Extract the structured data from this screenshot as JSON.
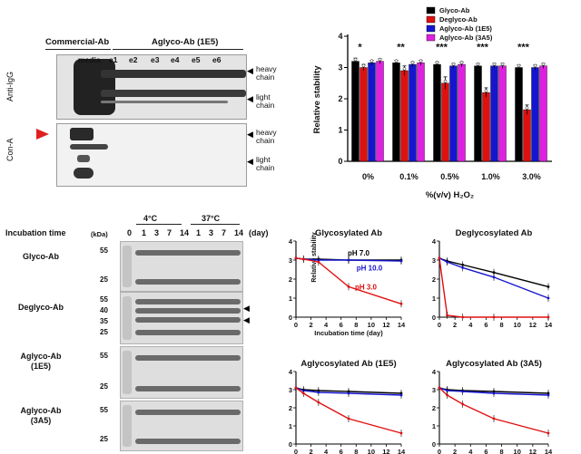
{
  "panel_a": {
    "commercial_label": "Commercial-Ab",
    "aglyco_label": "Aglyco-Ab (1E5)",
    "lanes": [
      "media",
      "e1",
      "e2",
      "e3",
      "e4",
      "e5",
      "e6"
    ],
    "anti_igg_label": "Anti-IgG",
    "cona_label": "Con-A",
    "heavy_chain": "heavy chain",
    "light_chain": "light chain",
    "heavy_chain_2": "heavy chain",
    "light_chain_2": "light chain",
    "arrow_color": "#e02020"
  },
  "panel_b": {
    "incubation_time_label": "Incubation time",
    "temp_4": "4°C",
    "temp_37": "37°C",
    "day_label": "(day)",
    "kda_label": "(kDa)",
    "days": [
      "0",
      "1",
      "3",
      "7",
      "14",
      "1",
      "3",
      "7",
      "14"
    ],
    "rows": [
      {
        "name": "Glyco-Ab",
        "markers": [
          "55",
          "25"
        ]
      },
      {
        "name": "Deglyco-Ab",
        "markers": [
          "55",
          "40",
          "35",
          "25"
        ]
      },
      {
        "name": "Aglyco-Ab (1E5)",
        "markers": [
          "55",
          "25"
        ]
      },
      {
        "name": "Aglyco-Ab (3A5)",
        "markers": [
          "55",
          "25"
        ]
      }
    ]
  },
  "chart_data": [
    {
      "type": "bar",
      "title": "",
      "categories": [
        "0%",
        "0.1%",
        "0.5%",
        "1.0%",
        "3.0%"
      ],
      "xlabel": "%(v/v) H₂O₂",
      "ylabel": "Relative stability",
      "ylim": [
        0,
        4
      ],
      "yticks": [
        "0",
        "1",
        "2",
        "3",
        "4"
      ],
      "legend_position": "top-right",
      "series": [
        {
          "name": "Glyco-Ab",
          "color": "#000000",
          "values": [
            3.2,
            3.15,
            3.1,
            3.05,
            3.0
          ]
        },
        {
          "name": "Deglyco-Ab",
          "color": "#e01010",
          "values": [
            3.0,
            2.9,
            2.5,
            2.2,
            1.65
          ]
        },
        {
          "name": "Aglyco-Ab (1E5)",
          "color": "#1515d0",
          "values": [
            3.15,
            3.1,
            3.05,
            3.05,
            3.0
          ]
        },
        {
          "name": "Aglyco-Ab (3A5)",
          "color": "#e020e0",
          "values": [
            3.2,
            3.15,
            3.1,
            3.05,
            3.05
          ]
        }
      ],
      "errors": [
        [
          0.1,
          0.08,
          0.08,
          0.08,
          0.08
        ],
        [
          0.1,
          0.15,
          0.2,
          0.15,
          0.15
        ],
        [
          0.08,
          0.08,
          0.08,
          0.08,
          0.08
        ],
        [
          0.08,
          0.08,
          0.08,
          0.08,
          0.08
        ]
      ],
      "significance": [
        "*",
        "**",
        "***",
        "***",
        "***"
      ]
    },
    {
      "type": "line",
      "title": "Glycosylated Ab",
      "xlabel": "Incubation time (day)",
      "ylabel": "Relative stability",
      "x": [
        0,
        1,
        3,
        7,
        14
      ],
      "xlim": [
        0,
        14
      ],
      "ylim": [
        0,
        4
      ],
      "xticks": [
        "0",
        "2",
        "4",
        "6",
        "8",
        "10",
        "12",
        "14"
      ],
      "yticks": [
        "0",
        "1",
        "2",
        "3",
        "4"
      ],
      "series": [
        {
          "name": "pH 7.0",
          "color": "#000000",
          "values": [
            3.1,
            3.05,
            3.05,
            3.0,
            3.0
          ]
        },
        {
          "name": "pH 10.0",
          "color": "#1515d0",
          "values": [
            3.1,
            3.05,
            3.0,
            3.0,
            2.95
          ]
        },
        {
          "name": "pH 3.0",
          "color": "#e01010",
          "values": [
            3.1,
            3.05,
            2.9,
            1.6,
            0.7
          ]
        }
      ]
    },
    {
      "type": "line",
      "title": "Deglycosylated Ab",
      "x": [
        0,
        1,
        3,
        7,
        14
      ],
      "xlim": [
        0,
        14
      ],
      "ylim": [
        0,
        4
      ],
      "xticks": [
        "0",
        "2",
        "4",
        "6",
        "8",
        "10",
        "12",
        "14"
      ],
      "yticks": [
        "0",
        "1",
        "2",
        "3",
        "4"
      ],
      "series": [
        {
          "name": "",
          "color": "#000000",
          "values": [
            3.1,
            2.95,
            2.75,
            2.35,
            1.6
          ]
        },
        {
          "name": "",
          "color": "#1515d0",
          "values": [
            3.1,
            2.9,
            2.6,
            2.1,
            1.0
          ]
        },
        {
          "name": "",
          "color": "#e01010",
          "values": [
            3.1,
            0.1,
            0.0,
            0.0,
            0.0
          ]
        }
      ]
    },
    {
      "type": "line",
      "title": "Aglycosylated Ab (1E5)",
      "x": [
        0,
        1,
        3,
        7,
        14
      ],
      "xlim": [
        0,
        14
      ],
      "ylim": [
        0,
        4
      ],
      "xticks": [
        "0",
        "2",
        "4",
        "6",
        "8",
        "10",
        "12",
        "14"
      ],
      "yticks": [
        "0",
        "1",
        "2",
        "3",
        "4"
      ],
      "series": [
        {
          "name": "",
          "color": "#000000",
          "values": [
            3.1,
            3.0,
            2.95,
            2.9,
            2.8
          ]
        },
        {
          "name": "",
          "color": "#1515d0",
          "values": [
            3.1,
            2.95,
            2.85,
            2.8,
            2.7
          ]
        },
        {
          "name": "",
          "color": "#e01010",
          "values": [
            3.1,
            2.8,
            2.3,
            1.4,
            0.6
          ]
        }
      ]
    },
    {
      "type": "line",
      "title": "Aglycosylated Ab (3A5)",
      "x": [
        0,
        1,
        3,
        7,
        14
      ],
      "xlim": [
        0,
        14
      ],
      "ylim": [
        0,
        4
      ],
      "xticks": [
        "0",
        "2",
        "4",
        "6",
        "8",
        "10",
        "12",
        "14"
      ],
      "yticks": [
        "0",
        "1",
        "2",
        "3",
        "4"
      ],
      "series": [
        {
          "name": "",
          "color": "#000000",
          "values": [
            3.1,
            3.0,
            2.95,
            2.9,
            2.8
          ]
        },
        {
          "name": "",
          "color": "#1515d0",
          "values": [
            3.1,
            2.95,
            2.9,
            2.8,
            2.7
          ]
        },
        {
          "name": "",
          "color": "#e01010",
          "values": [
            3.1,
            2.7,
            2.2,
            1.4,
            0.6
          ]
        }
      ]
    }
  ]
}
